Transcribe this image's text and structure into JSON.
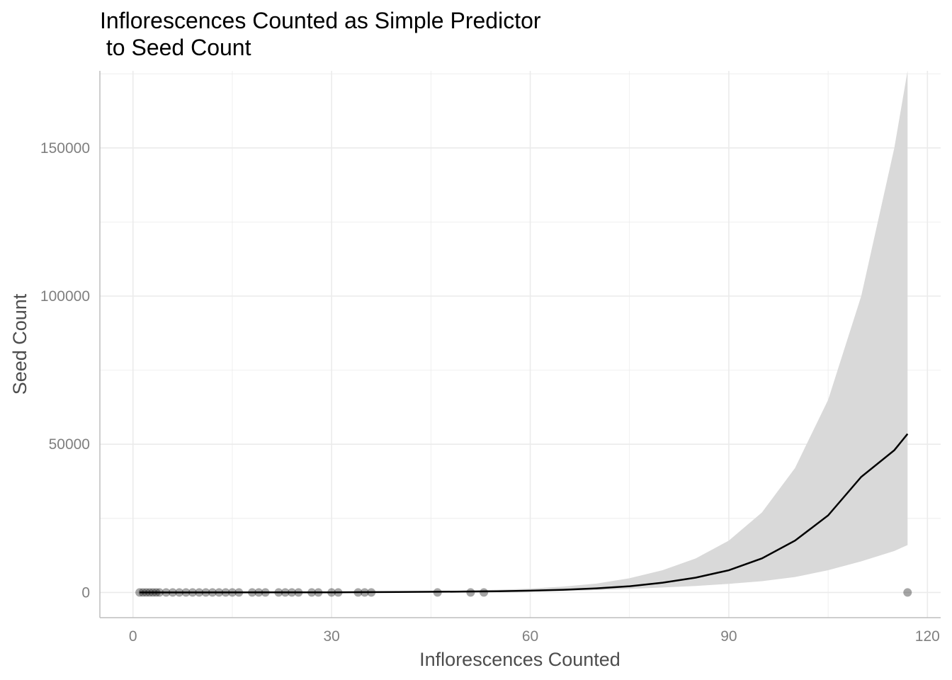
{
  "chart_data": {
    "type": "scatter",
    "title": "Inflorescences Counted as Simple Predictor\n to Seed Count",
    "xlabel": "Inflorescences Counted",
    "ylabel": "Seed Count",
    "xlim": [
      -5,
      122
    ],
    "ylim": [
      -8500,
      176000
    ],
    "x_ticks": [
      0,
      30,
      60,
      90,
      120
    ],
    "x_tick_labels": [
      "0",
      "30",
      "60",
      "90",
      "120"
    ],
    "y_ticks": [
      0,
      50000,
      100000,
      150000
    ],
    "y_tick_labels": [
      "0",
      "50000",
      "100000",
      "150000"
    ],
    "grid": true,
    "points": {
      "x": [
        1,
        1.5,
        2,
        2.5,
        3,
        3.5,
        4,
        5,
        6,
        7,
        8,
        9,
        10,
        11,
        12,
        13,
        14,
        15,
        16,
        18,
        19,
        20,
        22,
        23,
        24,
        25,
        27,
        28,
        30,
        31,
        34,
        35,
        36,
        46,
        51,
        53,
        117
      ],
      "y": [
        0,
        0,
        0,
        0,
        0,
        0,
        0,
        0,
        0,
        0,
        0,
        0,
        0,
        0,
        0,
        0,
        0,
        0,
        0,
        0,
        0,
        0,
        0,
        0,
        0,
        0,
        0,
        0,
        0,
        0,
        0,
        0,
        0,
        0,
        0,
        0,
        0
      ]
    },
    "fit_line": {
      "x": [
        1,
        30,
        40,
        50,
        55,
        60,
        65,
        70,
        75,
        80,
        85,
        90,
        95,
        100,
        105,
        110,
        115,
        117
      ],
      "y": [
        0,
        50,
        150,
        300,
        400,
        600,
        900,
        1400,
        2100,
        3300,
        5000,
        7500,
        11500,
        17500,
        26000,
        39000,
        48000,
        53500
      ]
    },
    "confidence_band": {
      "x": [
        1,
        30,
        40,
        50,
        55,
        60,
        65,
        70,
        75,
        80,
        85,
        90,
        95,
        100,
        105,
        110,
        115,
        117
      ],
      "lower": [
        0,
        0,
        50,
        100,
        200,
        300,
        500,
        800,
        1200,
        1700,
        2200,
        2900,
        3800,
        5200,
        7500,
        10500,
        14000,
        16000
      ],
      "upper": [
        0,
        100,
        300,
        600,
        900,
        1300,
        2000,
        3000,
        4800,
        7500,
        11500,
        17500,
        27000,
        42000,
        65000,
        100000,
        150000,
        176000
      ]
    },
    "colors": {
      "points": "#000000",
      "line": "#000000",
      "band": "#d9d9d9",
      "grid": "#ebebeb"
    }
  }
}
